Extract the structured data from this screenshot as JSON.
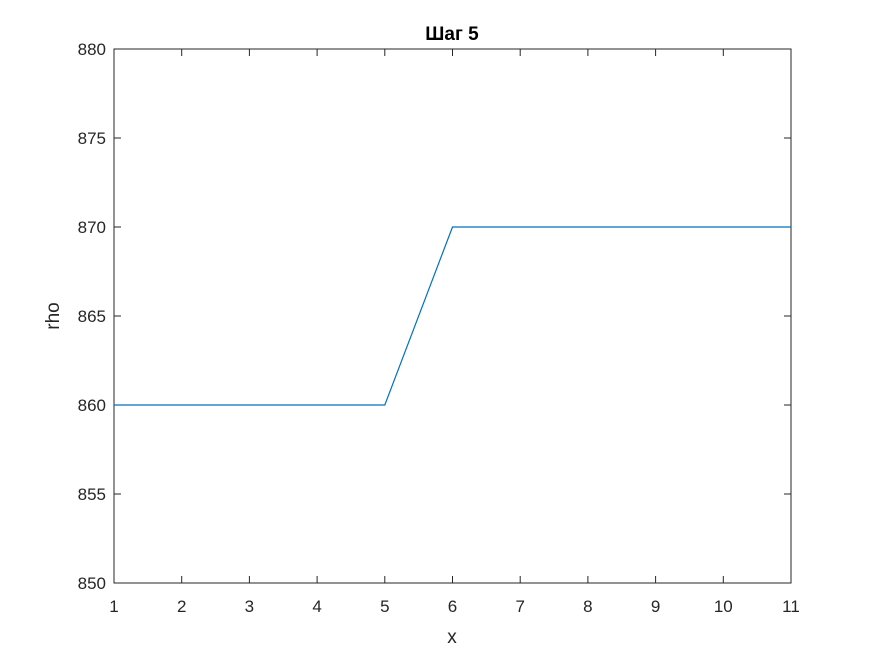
{
  "chart_data": {
    "type": "line",
    "title": "Шаг 5",
    "xlabel": "x",
    "ylabel": "rho",
    "xlim": [
      1,
      11
    ],
    "ylim": [
      850,
      880
    ],
    "xticks": [
      1,
      2,
      3,
      4,
      5,
      6,
      7,
      8,
      9,
      10,
      11
    ],
    "yticks": [
      850,
      855,
      860,
      865,
      870,
      875,
      880
    ],
    "grid": false,
    "series": [
      {
        "color": "#0072BD",
        "x": [
          1,
          2,
          3,
          4,
          5,
          6,
          7,
          8,
          9,
          10,
          11
        ],
        "y": [
          860,
          860,
          860,
          860,
          860,
          870,
          870,
          870,
          870,
          870,
          870
        ]
      }
    ]
  }
}
